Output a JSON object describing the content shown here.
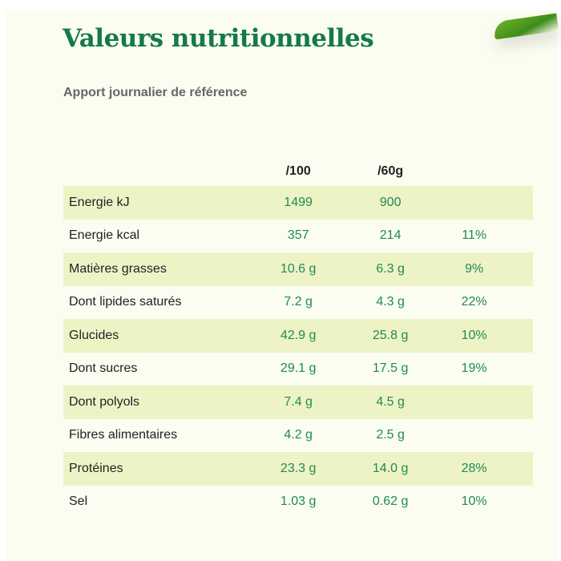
{
  "title": "Valeurs nutritionnelles",
  "subtitle": "Apport journalier de référence",
  "columns": [
    "",
    "/100",
    "/60g",
    ""
  ],
  "rows": [
    {
      "name": "Energie kJ",
      "per100": "1499",
      "per60": "900",
      "ar": ""
    },
    {
      "name": "Energie kcal",
      "per100": "357",
      "per60": "214",
      "ar": "11%"
    },
    {
      "name": "Matières grasses",
      "per100": "10.6 g",
      "per60": "6.3 g",
      "ar": "9%"
    },
    {
      "name": "Dont lipides saturés",
      "per100": "7.2 g",
      "per60": "4.3 g",
      "ar": "22%"
    },
    {
      "name": "Glucides",
      "per100": "42.9 g",
      "per60": "25.8 g",
      "ar": "10%"
    },
    {
      "name": "Dont sucres",
      "per100": "29.1 g",
      "per60": "17.5 g",
      "ar": "19%"
    },
    {
      "name": "Dont polyols",
      "per100": "7.4 g",
      "per60": "4.5 g",
      "ar": ""
    },
    {
      "name": "Fibres alimentaires",
      "per100": "4.2 g",
      "per60": "2.5 g",
      "ar": ""
    },
    {
      "name": "Protéines",
      "per100": "23.3 g",
      "per60": "14.0 g",
      "ar": "28%"
    },
    {
      "name": "Sel",
      "per100": "1.03 g",
      "per60": "0.62 g",
      "ar": "10%"
    }
  ]
}
